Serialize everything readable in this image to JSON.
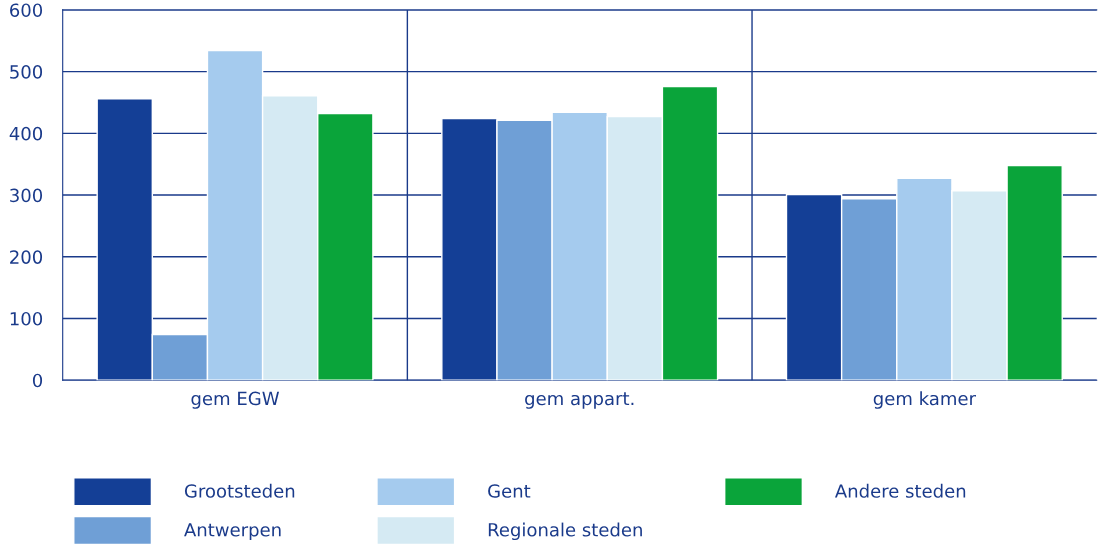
{
  "chart_data": {
    "type": "bar",
    "categories": [
      "gem EGW",
      "gem appart.",
      "gem kamer"
    ],
    "series": [
      {
        "name": "Grootsteden",
        "color": "#143f96",
        "values": [
          456,
          424,
          301
        ]
      },
      {
        "name": "Antwerpen",
        "color": "#6f9fd6",
        "values": [
          74,
          421,
          294
        ]
      },
      {
        "name": "Gent",
        "color": "#a5cbee",
        "values": [
          534,
          434,
          327
        ]
      },
      {
        "name": "Regionale steden",
        "color": "#d5eaf3",
        "values": [
          461,
          427,
          307
        ]
      },
      {
        "name": "Andere steden",
        "color": "#0aa43a",
        "values": [
          432,
          476,
          348
        ]
      }
    ],
    "ylim": [
      0,
      600
    ],
    "yticks": [
      0,
      100,
      200,
      300,
      400,
      500,
      600
    ],
    "grid": "y",
    "legend": "bottom"
  }
}
